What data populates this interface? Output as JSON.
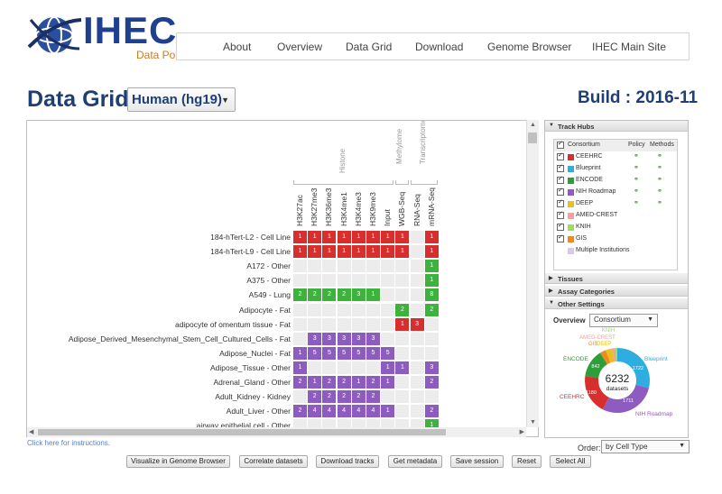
{
  "brand": {
    "name": "IHEC",
    "subtitle": "Data Portal"
  },
  "nav": [
    "About",
    "Overview",
    "Data Grid",
    "Download",
    "Genome Browser",
    "IHEC Main Site"
  ],
  "page": {
    "title": "Data Grid :",
    "assembly": "Human (hg19)",
    "build": "Build : 2016-11"
  },
  "grid": {
    "groups": [
      "Histone",
      "Methylome",
      "Transcriptome"
    ],
    "columns": [
      "H3K27ac",
      "H3K27me3",
      "H3K36me3",
      "H3K4me1",
      "H3K4me3",
      "H3K9me3",
      "Input",
      "WGB-Seq",
      "RNA-Seq",
      "mRNA-Seq"
    ],
    "rows": [
      {
        "label": "184-hTert-L2 - Cell Line",
        "cells": [
          "1",
          "1",
          "1",
          "1",
          "1",
          "1",
          "1",
          "1",
          "",
          "1"
        ],
        "color": [
          "red",
          "red",
          "red",
          "red",
          "red",
          "red",
          "red",
          "red",
          "",
          "red"
        ]
      },
      {
        "label": "184-hTert-L9 - Cell Line",
        "cells": [
          "1",
          "1",
          "1",
          "1",
          "1",
          "1",
          "1",
          "1",
          "",
          "1"
        ],
        "color": [
          "red",
          "red",
          "red",
          "red",
          "red",
          "red",
          "red",
          "red",
          "",
          "red"
        ]
      },
      {
        "label": "A172 - Other",
        "cells": [
          "",
          "",
          "",
          "",
          "",
          "",
          "",
          "",
          "",
          "1"
        ],
        "color": [
          "",
          "",
          "",
          "",
          "",
          "",
          "",
          "",
          "",
          "green"
        ]
      },
      {
        "label": "A375 - Other",
        "cells": [
          "",
          "",
          "",
          "",
          "",
          "",
          "",
          "",
          "",
          "1"
        ],
        "color": [
          "",
          "",
          "",
          "",
          "",
          "",
          "",
          "",
          "",
          "green"
        ]
      },
      {
        "label": "A549 - Lung",
        "cells": [
          "2",
          "2",
          "2",
          "2",
          "3",
          "1",
          "",
          "",
          "",
          "8"
        ],
        "color": [
          "green",
          "green",
          "green",
          "green",
          "green",
          "green",
          "",
          "",
          "",
          "green"
        ]
      },
      {
        "label": "Adipocyte - Fat",
        "cells": [
          "",
          "",
          "",
          "",
          "",
          "",
          "",
          "2",
          "",
          "2"
        ],
        "color": [
          "",
          "",
          "",
          "",
          "",
          "",
          "",
          "green",
          "",
          "green"
        ]
      },
      {
        "label": "adipocyte of omentum tissue - Fat",
        "cells": [
          "",
          "",
          "",
          "",
          "",
          "",
          "",
          "1",
          "3",
          ""
        ],
        "color": [
          "",
          "",
          "",
          "",
          "",
          "",
          "",
          "red",
          "red",
          ""
        ]
      },
      {
        "label": "Adipose_Derived_Mesenchymal_Stem_Cell_Cultured_Cells - Fat",
        "cells": [
          "",
          "3",
          "3",
          "3",
          "3",
          "3",
          "",
          "",
          "",
          ""
        ],
        "color": [
          "",
          "purple",
          "purple",
          "purple",
          "purple",
          "purple",
          "",
          "",
          "",
          ""
        ]
      },
      {
        "label": "Adipose_Nuclei - Fat",
        "cells": [
          "1",
          "5",
          "5",
          "5",
          "5",
          "5",
          "5",
          "",
          "",
          ""
        ],
        "color": [
          "purple",
          "purple",
          "purple",
          "purple",
          "purple",
          "purple",
          "purple",
          "",
          "",
          ""
        ]
      },
      {
        "label": "Adipose_Tissue - Other",
        "cells": [
          "1",
          "",
          "",
          "",
          "",
          "",
          "1",
          "1",
          "",
          "3"
        ],
        "color": [
          "purple",
          "",
          "",
          "",
          "",
          "",
          "purple",
          "purple",
          "",
          "purple"
        ]
      },
      {
        "label": "Adrenal_Gland - Other",
        "cells": [
          "2",
          "1",
          "2",
          "2",
          "1",
          "2",
          "1",
          "",
          "",
          "2"
        ],
        "color": [
          "purple",
          "purple",
          "purple",
          "purple",
          "purple",
          "purple",
          "purple",
          "",
          "",
          "purple"
        ]
      },
      {
        "label": "Adult_Kidney - Kidney",
        "cells": [
          "",
          "2",
          "2",
          "2",
          "2",
          "2",
          "",
          "",
          "",
          ""
        ],
        "color": [
          "",
          "purple",
          "purple",
          "purple",
          "purple",
          "purple",
          "",
          "",
          "",
          ""
        ]
      },
      {
        "label": "Adult_Liver - Other",
        "cells": [
          "2",
          "4",
          "4",
          "4",
          "4",
          "4",
          "1",
          "",
          "",
          "2"
        ],
        "color": [
          "purple",
          "purple",
          "purple",
          "purple",
          "purple",
          "purple",
          "purple",
          "",
          "",
          "purple"
        ]
      },
      {
        "label": "airway epithelial cell - Other",
        "cells": [
          "",
          "",
          "",
          "",
          "",
          "",
          "",
          "",
          "",
          "1"
        ],
        "color": [
          "",
          "",
          "",
          "",
          "",
          "",
          "",
          "",
          "",
          "green"
        ]
      }
    ]
  },
  "side": {
    "track_hubs_title": "Track Hubs",
    "hub_headers": [
      "Consortium",
      "Policy",
      "Methods"
    ],
    "hubs": [
      {
        "name": "CEEHRC",
        "color": "#d72e2e",
        "policy": true,
        "methods": true
      },
      {
        "name": "Blueprint",
        "color": "#2eaee0",
        "policy": true,
        "methods": true
      },
      {
        "name": "ENCODE",
        "color": "#2e9e3a",
        "policy": true,
        "methods": true
      },
      {
        "name": "NIH Roadmap",
        "color": "#8e5cc1",
        "policy": true,
        "methods": true
      },
      {
        "name": "DEEP",
        "color": "#e8c020",
        "policy": true,
        "methods": true
      },
      {
        "name": "AMED-CREST",
        "color": "#f2a0a0",
        "policy": false,
        "methods": false
      },
      {
        "name": "KNIH",
        "color": "#9edc5a",
        "policy": false,
        "methods": false
      },
      {
        "name": "GIS",
        "color": "#f08a1e",
        "policy": false,
        "methods": false
      }
    ],
    "multi_label": "Multiple Institutions",
    "multi_color": "#d9c9e9",
    "sections": [
      "Tissues",
      "Assay Categories",
      "Other Settings"
    ],
    "overview_label": "Overview",
    "overview_value": "Consortium"
  },
  "donut": {
    "total": "6232",
    "total_label": "datasets",
    "segments": [
      {
        "name": "Blueprint",
        "value": 1722,
        "color": "#2eaee0"
      },
      {
        "name": "NIH Roadmap",
        "value": 1711,
        "color": "#8e5cc1"
      },
      {
        "name": "CEEHRC",
        "value": 1180,
        "color": "#d72e2e"
      },
      {
        "name": "ENCODE",
        "value": 842,
        "color": "#2e9e3a"
      },
      {
        "name": "GIS",
        "value": 180,
        "color": "#f08a1e"
      },
      {
        "name": "DEEP",
        "value": 200,
        "color": "#e8c020"
      },
      {
        "name": "AMED-CREST",
        "value": 90,
        "color": "#f2a0a0"
      },
      {
        "name": "KNIH",
        "value": 60,
        "color": "#9edc5a"
      }
    ],
    "labels": {
      "blueprint": "Blueprint",
      "blueprint_val": "1722",
      "roadmap": "NIH Roadmap",
      "roadmap_val": "1711",
      "ceehrc": "CEEHRC",
      "ceehrc_val": "1180",
      "encode": "ENCODE",
      "encode_val": "842",
      "knih": "KNIH",
      "amed": "AMED-CREST",
      "gis": "GIS",
      "deep": "DEEP"
    }
  },
  "footer": {
    "instructions": "Click here for instructions.",
    "order_label": "Order:",
    "order_value": "by Cell Type",
    "buttons": [
      "Visualize in Genome Browser",
      "Correlate datasets",
      "Download tracks",
      "Get metadata",
      "Save session",
      "Reset",
      "Select All"
    ]
  }
}
